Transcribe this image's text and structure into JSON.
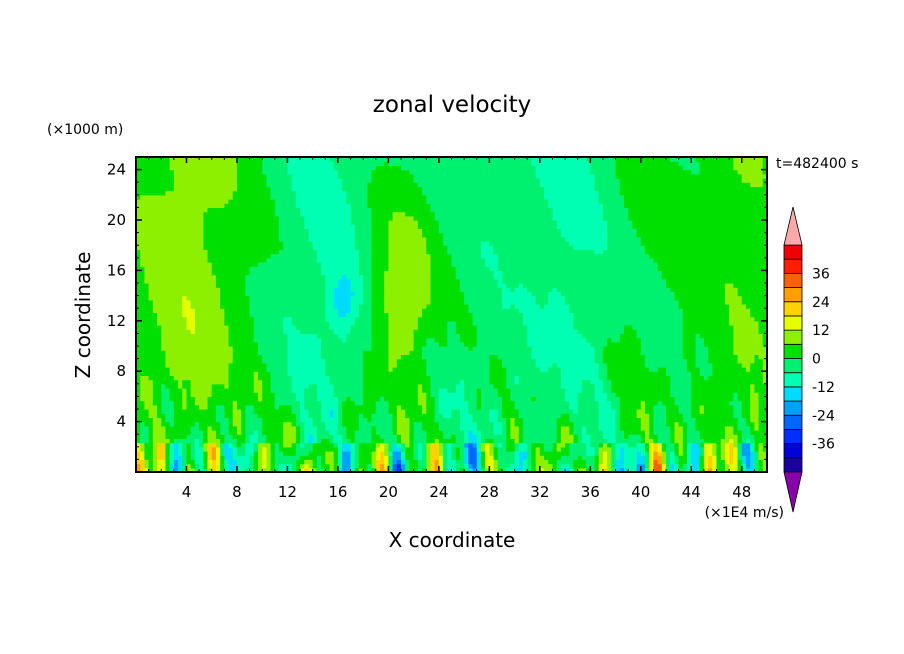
{
  "chart_data": {
    "type": "heatmap",
    "title": "zonal velocity",
    "xlabel": "X coordinate",
    "ylabel": "Z coordinate",
    "y_unit_label": "(×1000 m)",
    "x_unit_label": "(×1E4 m/s)",
    "time_label": "t=482400 s",
    "xlim": [
      0,
      50
    ],
    "ylim": [
      0,
      25
    ],
    "xticks": [
      4,
      8,
      12,
      16,
      20,
      24,
      28,
      32,
      36,
      40,
      44,
      48
    ],
    "yticks": [
      4,
      8,
      12,
      16,
      20,
      24
    ],
    "colorbar": {
      "levels": [
        -42,
        -36,
        -30,
        -24,
        -18,
        -12,
        -6,
        0,
        6,
        12,
        18,
        24,
        30,
        36,
        42
      ],
      "labels": [
        -36,
        -24,
        -12,
        0,
        12,
        24,
        36
      ],
      "colors": [
        "#1a00a0",
        "#0000d8",
        "#0030ff",
        "#0068ff",
        "#00a0ff",
        "#00dcff",
        "#00ffb0",
        "#00f070",
        "#00e000",
        "#8cf000",
        "#e6ff00",
        "#ffd200",
        "#ffa000",
        "#ff6000",
        "#ff1e00",
        "#f00000"
      ],
      "under_color": "#8800aa",
      "over_color": "#ffaaaa",
      "extend": "both"
    }
  }
}
